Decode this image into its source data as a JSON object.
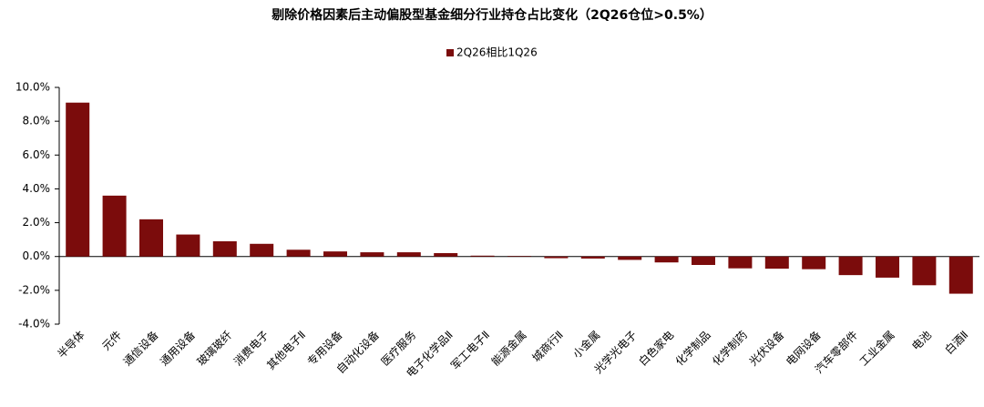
{
  "chart_data": {
    "type": "bar",
    "title": "剔除价格因素后主动偏股型基金细分行业持仓占比变化（2Q26仓位>0.5%）",
    "categories": [
      "半导体",
      "元件",
      "通信设备",
      "通用设备",
      "玻璃玻纤",
      "消费电子",
      "其他电子Ⅱ",
      "专用设备",
      "自动化设备",
      "医疗服务",
      "电子化学品Ⅱ",
      "军工电子Ⅱ",
      "能源金属",
      "城商行Ⅱ",
      "小金属",
      "光学光电子",
      "白色家电",
      "化学制品",
      "化学制药",
      "光伏设备",
      "电网设备",
      "汽车零部件",
      "工业金属",
      "电池",
      "白酒Ⅱ"
    ],
    "series": [
      {
        "name": "2Q26相比1Q26",
        "color": "#7b0c0c",
        "values": [
          9.1,
          3.6,
          2.2,
          1.3,
          0.9,
          0.75,
          0.4,
          0.3,
          0.25,
          0.25,
          0.2,
          0.05,
          0.03,
          -0.1,
          -0.12,
          -0.2,
          -0.35,
          -0.5,
          -0.7,
          -0.72,
          -0.75,
          -1.1,
          -1.25,
          -1.7,
          -2.2
        ]
      }
    ],
    "ylim": [
      -4,
      10
    ],
    "yticks": [
      {
        "value": -4,
        "label": "-4.0%"
      },
      {
        "value": -2,
        "label": "-2.0%"
      },
      {
        "value": 0,
        "label": "0.0%"
      },
      {
        "value": 2,
        "label": "2.0%"
      },
      {
        "value": 4,
        "label": "4.0%"
      },
      {
        "value": 6,
        "label": "6.0%"
      },
      {
        "value": 8,
        "label": "8.0%"
      },
      {
        "value": 10,
        "label": "10.0%"
      }
    ],
    "grid": false,
    "legend": "top"
  }
}
